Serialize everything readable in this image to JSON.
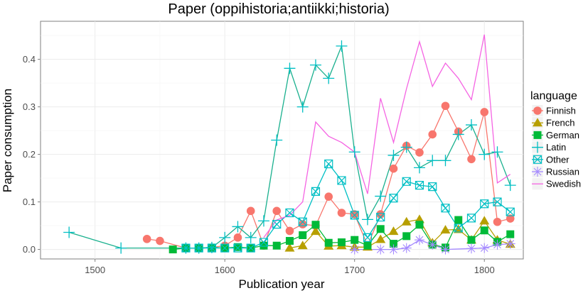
{
  "chart_data": {
    "type": "line",
    "title": "Paper (oppihistoria;antiikki;historia)",
    "xlabel": "Publication year",
    "ylabel": "Paper consumption",
    "xlim": [
      1458,
      1830
    ],
    "ylim": [
      -0.02,
      0.48
    ],
    "xticks": [
      1500,
      1600,
      1700,
      1800
    ],
    "yticks": [
      0.0,
      0.1,
      0.2,
      0.3,
      0.4
    ],
    "ytick_labels": [
      "0.0",
      "0.1",
      "0.2",
      "0.3",
      "0.4"
    ],
    "grid": true,
    "legend": {
      "title": "language",
      "position": "right"
    },
    "series": [
      {
        "name": "Finnish",
        "color": "#F8766D",
        "marker": "circle",
        "points": [
          [
            1540,
            0.022
          ],
          [
            1550,
            0.018
          ],
          [
            1570,
            0.003
          ],
          [
            1580,
            0.003
          ],
          [
            1590,
            0.004
          ],
          [
            1600,
            0.008
          ],
          [
            1610,
            0.025
          ],
          [
            1620,
            0.081
          ],
          [
            1630,
            0.008
          ],
          [
            1640,
            0.081
          ],
          [
            1650,
            0.039
          ],
          [
            1660,
            0.053
          ],
          [
            1670,
            0.05
          ],
          [
            1680,
            0.111
          ],
          [
            1690,
            0.077
          ],
          [
            1700,
            0.074
          ],
          [
            1710,
            0.008
          ],
          [
            1720,
            0.074
          ],
          [
            1730,
            0.17
          ],
          [
            1740,
            0.218
          ],
          [
            1750,
            0.204
          ],
          [
            1760,
            0.242
          ],
          [
            1770,
            0.302
          ],
          [
            1780,
            0.248
          ],
          [
            1790,
            0.19
          ],
          [
            1800,
            0.289
          ],
          [
            1810,
            0.058
          ],
          [
            1820,
            0.065
          ]
        ]
      },
      {
        "name": "French",
        "color": "#B79F00",
        "marker": "triangle",
        "points": [
          [
            1650,
            0.003
          ],
          [
            1660,
            0.008
          ],
          [
            1670,
            0.038
          ],
          [
            1680,
            0.007
          ],
          [
            1690,
            0.008
          ],
          [
            1700,
            0.005
          ],
          [
            1710,
            0.005
          ],
          [
            1720,
            0.021
          ],
          [
            1730,
            0.038
          ],
          [
            1740,
            0.058
          ],
          [
            1750,
            0.063
          ],
          [
            1760,
            0.014
          ],
          [
            1770,
            0.041
          ],
          [
            1780,
            0.042
          ],
          [
            1790,
            0.02
          ],
          [
            1800,
            0.06
          ],
          [
            1810,
            0.02
          ],
          [
            1820,
            0.011
          ]
        ]
      },
      {
        "name": "German",
        "color": "#00BA38",
        "marker": "square",
        "points": [
          [
            1560,
            0.0
          ],
          [
            1570,
            0.003
          ],
          [
            1580,
            0.003
          ],
          [
            1590,
            0.004
          ],
          [
            1600,
            0.003
          ],
          [
            1610,
            0.005
          ],
          [
            1620,
            0.003
          ],
          [
            1630,
            0.008
          ],
          [
            1640,
            0.008
          ],
          [
            1650,
            0.018
          ],
          [
            1660,
            0.03
          ],
          [
            1670,
            0.052
          ],
          [
            1680,
            0.014
          ],
          [
            1690,
            0.015
          ],
          [
            1700,
            0.02
          ],
          [
            1710,
            0.008
          ],
          [
            1720,
            0.043
          ],
          [
            1730,
            0.012
          ],
          [
            1740,
            0.028
          ],
          [
            1750,
            0.052
          ],
          [
            1760,
            0.01
          ],
          [
            1770,
            0.004
          ],
          [
            1780,
            0.062
          ],
          [
            1790,
            0.02
          ],
          [
            1800,
            0.04
          ],
          [
            1810,
            0.016
          ],
          [
            1820,
            0.032
          ]
        ]
      },
      {
        "name": "Latin",
        "color": "#00BFC4",
        "line_color": "#1ab08e",
        "marker": "plus",
        "points": [
          [
            1480,
            0.036
          ],
          [
            1520,
            0.003
          ],
          [
            1570,
            0.003
          ],
          [
            1580,
            0.003
          ],
          [
            1590,
            0.004
          ],
          [
            1600,
            0.025
          ],
          [
            1610,
            0.048
          ],
          [
            1620,
            0.025
          ],
          [
            1630,
            0.06
          ],
          [
            1640,
            0.23
          ],
          [
            1650,
            0.381
          ],
          [
            1660,
            0.3
          ],
          [
            1670,
            0.388
          ],
          [
            1680,
            0.36
          ],
          [
            1690,
            0.428
          ],
          [
            1700,
            0.205
          ],
          [
            1710,
            0.063
          ],
          [
            1720,
            0.112
          ],
          [
            1730,
            0.198
          ],
          [
            1740,
            0.215
          ],
          [
            1750,
            0.172
          ],
          [
            1760,
            0.187
          ],
          [
            1770,
            0.187
          ],
          [
            1780,
            0.242
          ],
          [
            1790,
            0.262
          ],
          [
            1800,
            0.2
          ],
          [
            1810,
            0.205
          ],
          [
            1820,
            0.135
          ]
        ]
      },
      {
        "name": "Other",
        "color": "#00BFC4",
        "marker": "square-x",
        "points": [
          [
            1570,
            0.003
          ],
          [
            1580,
            0.003
          ],
          [
            1590,
            0.003
          ],
          [
            1600,
            0.003
          ],
          [
            1610,
            0.003
          ],
          [
            1620,
            0.003
          ],
          [
            1630,
            0.015
          ],
          [
            1640,
            0.053
          ],
          [
            1650,
            0.077
          ],
          [
            1660,
            0.058
          ],
          [
            1670,
            0.122
          ],
          [
            1680,
            0.18
          ],
          [
            1690,
            0.145
          ],
          [
            1700,
            0.072
          ],
          [
            1710,
            0.025
          ],
          [
            1720,
            0.068
          ],
          [
            1730,
            0.108
          ],
          [
            1740,
            0.143
          ],
          [
            1750,
            0.135
          ],
          [
            1760,
            0.132
          ],
          [
            1770,
            0.087
          ],
          [
            1780,
            0.045
          ],
          [
            1790,
            0.066
          ],
          [
            1800,
            0.096
          ],
          [
            1810,
            0.1
          ],
          [
            1820,
            0.079
          ]
        ]
      },
      {
        "name": "Russian",
        "color": "#A58AFF",
        "marker": "star",
        "points": [
          [
            1700,
            0.0
          ],
          [
            1720,
            0.0
          ],
          [
            1730,
            0.0
          ],
          [
            1740,
            0.003
          ],
          [
            1750,
            0.02
          ],
          [
            1760,
            0.01
          ],
          [
            1770,
            0.0
          ],
          [
            1790,
            0.002
          ],
          [
            1800,
            0.003
          ],
          [
            1810,
            0.01
          ],
          [
            1820,
            0.012
          ]
        ]
      },
      {
        "name": "Swedish",
        "color": "#F564E3",
        "marker": "none",
        "points": [
          [
            1630,
            0.025
          ],
          [
            1640,
            0.062
          ],
          [
            1650,
            0.072
          ],
          [
            1660,
            0.1
          ],
          [
            1670,
            0.268
          ],
          [
            1680,
            0.238
          ],
          [
            1690,
            0.225
          ],
          [
            1700,
            0.205
          ],
          [
            1710,
            0.117
          ],
          [
            1720,
            0.318
          ],
          [
            1730,
            0.225
          ],
          [
            1740,
            0.338
          ],
          [
            1750,
            0.437
          ],
          [
            1760,
            0.343
          ],
          [
            1770,
            0.392
          ],
          [
            1780,
            0.36
          ],
          [
            1790,
            0.315
          ],
          [
            1800,
            0.452
          ],
          [
            1810,
            0.14
          ],
          [
            1820,
            0.158
          ]
        ]
      }
    ]
  }
}
